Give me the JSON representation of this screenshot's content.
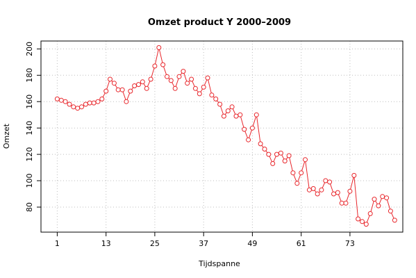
{
  "chart_data": {
    "type": "line",
    "title": "Omzet product Y 2000–2009",
    "xlabel": "Tijdspanne",
    "ylabel": "Omzet",
    "x_ticks": [
      1,
      13,
      25,
      37,
      49,
      61,
      73
    ],
    "y_ticks": [
      80,
      100,
      120,
      140,
      160,
      180,
      200
    ],
    "xlim": [
      -3,
      86
    ],
    "ylim": [
      61,
      206
    ],
    "grid": true,
    "series_color": "#e8262b",
    "x": [
      1,
      2,
      3,
      4,
      5,
      6,
      7,
      8,
      9,
      10,
      11,
      12,
      13,
      14,
      15,
      16,
      17,
      18,
      19,
      20,
      21,
      22,
      23,
      24,
      25,
      26,
      27,
      28,
      29,
      30,
      31,
      32,
      33,
      34,
      35,
      36,
      37,
      38,
      39,
      40,
      41,
      42,
      43,
      44,
      45,
      46,
      47,
      48,
      49,
      50,
      51,
      52,
      53,
      54,
      55,
      56,
      57,
      58,
      59,
      60,
      61,
      62,
      63,
      64,
      65,
      66,
      67,
      68,
      69,
      70,
      71,
      72,
      73,
      74,
      75,
      76,
      77,
      78,
      79,
      80,
      81,
      82,
      83,
      84
    ],
    "values": [
      162,
      161,
      160,
      158,
      156,
      155,
      156,
      158,
      159,
      159,
      160,
      162,
      168,
      177,
      174,
      169,
      169,
      160,
      168,
      172,
      173,
      175,
      170,
      177,
      187,
      201,
      188,
      179,
      176,
      170,
      179,
      183,
      174,
      177,
      170,
      166,
      171,
      178,
      165,
      162,
      158,
      149,
      153,
      156,
      149,
      150,
      139,
      131,
      140,
      150,
      128,
      124,
      120,
      113,
      120,
      121,
      115,
      119,
      106,
      98,
      106,
      116,
      93,
      94,
      90,
      93,
      100,
      99,
      90,
      91,
      83,
      83,
      92,
      104,
      71,
      69,
      67,
      75,
      86,
      81,
      88,
      87,
      77,
      70
    ]
  }
}
